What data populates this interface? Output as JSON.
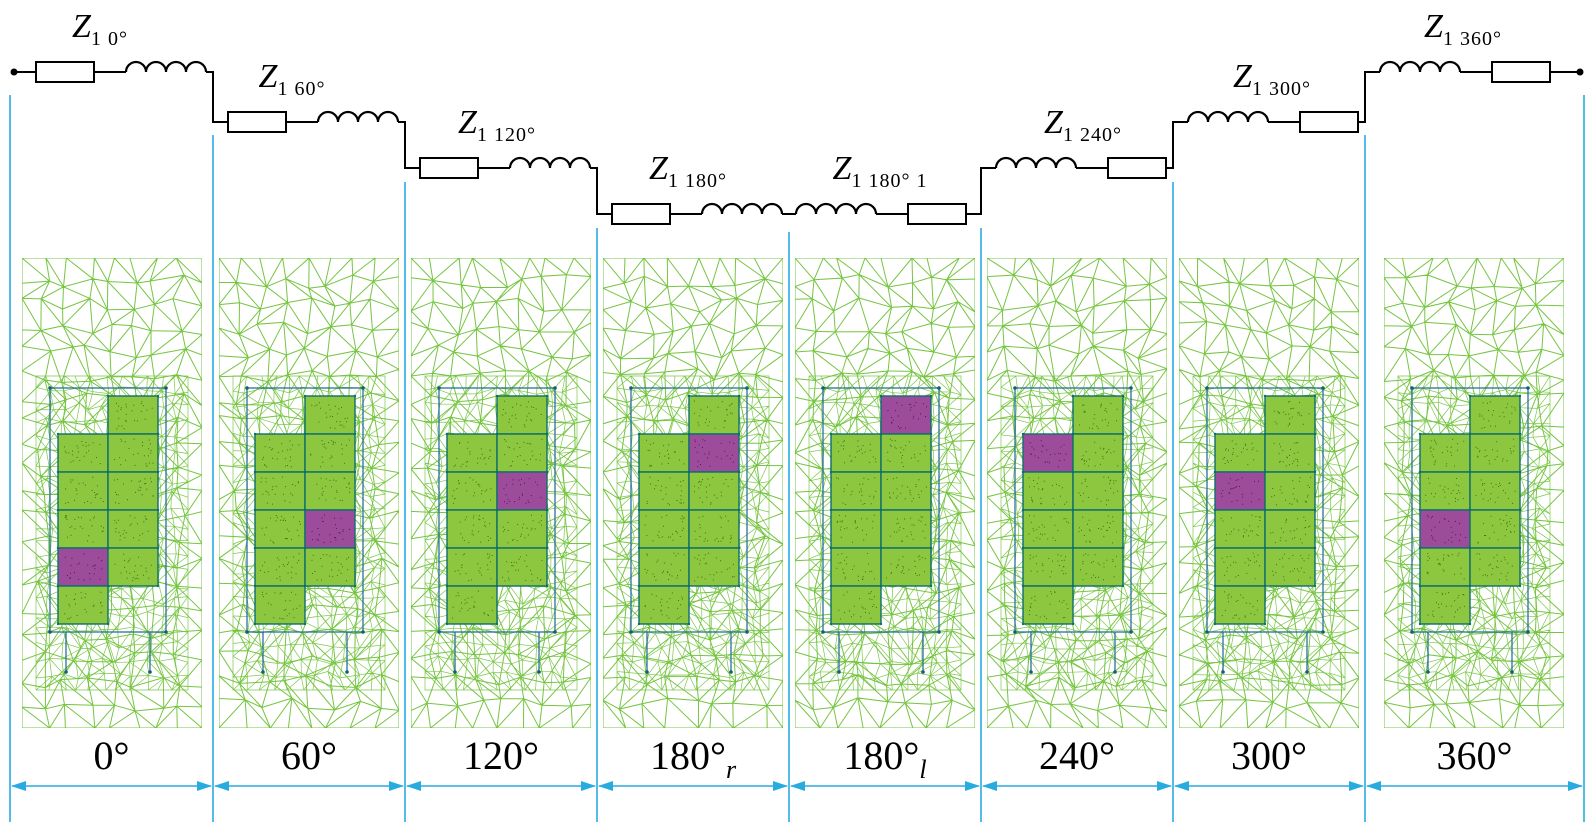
{
  "figure": {
    "type": "fem-mesh-phase-sequence-with-impedance-ladder"
  },
  "colors": {
    "mesh_green": "#6fc238",
    "cell_green": "#8dc63f",
    "cell_speckle": "#2f6d13",
    "cell_purple": "#9d4c9c",
    "purple_speckle": "#43173f",
    "cell_border": "#0d6e6e",
    "slot_outline": "#2a6f9e",
    "node_dot": "#155e73",
    "guide_cyan": "#29abe2",
    "circuit_black": "#000000"
  },
  "circuit": {
    "elements": [
      {
        "sym": "Z",
        "sub": "1 0°"
      },
      {
        "sym": "Z",
        "sub": "1 60°"
      },
      {
        "sym": "Z",
        "sub": "1 120°"
      },
      {
        "sym": "Z",
        "sub": "1 180°"
      },
      {
        "sym": "Z",
        "sub": "1 180° 1"
      },
      {
        "sym": "Z",
        "sub": "1 240°"
      },
      {
        "sym": "Z",
        "sub": "1 300°"
      },
      {
        "sym": "Z",
        "sub": "1 360°"
      }
    ]
  },
  "panels": [
    {
      "label": "0°",
      "sub": "",
      "purple_col": 0,
      "purple_row": 3
    },
    {
      "label": "60°",
      "sub": "",
      "purple_col": 1,
      "purple_row": 3
    },
    {
      "label": "120°",
      "sub": "",
      "purple_col": 1,
      "purple_row": 2
    },
    {
      "label": "180°",
      "sub": "r",
      "purple_col": 1,
      "purple_row": 1
    },
    {
      "label": "180°",
      "sub": "l",
      "purple_col": 1,
      "purple_row": 0
    },
    {
      "label": "240°",
      "sub": "",
      "purple_col": 0,
      "purple_row": 0
    },
    {
      "label": "300°",
      "sub": "",
      "purple_col": 0,
      "purple_row": 1
    },
    {
      "label": "360°",
      "sub": "",
      "purple_col": 0,
      "purple_row": 2
    }
  ]
}
